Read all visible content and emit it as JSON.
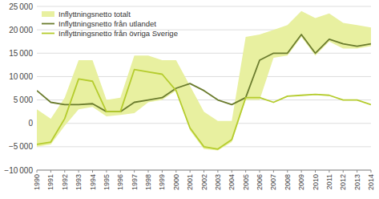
{
  "chart_data": {
    "type": "line",
    "x": [
      1990,
      1991,
      1992,
      1993,
      1994,
      1995,
      1996,
      1997,
      1998,
      1999,
      2000,
      2001,
      2002,
      2003,
      2004,
      2005,
      2006,
      2007,
      2008,
      2009,
      2010,
      2011,
      2012,
      2013,
      2014
    ],
    "series": [
      {
        "name": "Inflyttningsnetto totalt",
        "type": "area",
        "color": "#e8f0a0",
        "values": [
          3000,
          1000,
          5500,
          13500,
          13500,
          5000,
          5500,
          14500,
          14500,
          13500,
          13500,
          8000,
          2500,
          500,
          500,
          18500,
          19000,
          20000,
          21000,
          24000,
          22500,
          23500,
          21500,
          21000,
          20500
        ],
        "lower": [
          -5000,
          -4500,
          -500,
          3000,
          3500,
          1500,
          1800,
          2200,
          4500,
          5000,
          7000,
          -1500,
          -5500,
          -5800,
          -4000,
          5000,
          5000,
          14000,
          14500,
          18500,
          14500,
          17500,
          16000,
          16000,
          16500
        ]
      },
      {
        "name": "Inflyttningsnetto från utlandet",
        "type": "line",
        "color": "#6b7c2e",
        "values": [
          7000,
          4500,
          4000,
          4000,
          4200,
          2500,
          2500,
          4500,
          5000,
          5500,
          7500,
          8500,
          7000,
          5000,
          4000,
          5500,
          13500,
          15000,
          15000,
          19000,
          15000,
          18000,
          17000,
          16500,
          17000
        ]
      },
      {
        "name": "Inflyttningsnetto från övriga Sverige",
        "type": "line",
        "color": "#b5cc2e",
        "values": [
          -4500,
          -4000,
          1000,
          9500,
          9000,
          2500,
          2500,
          11500,
          11000,
          10500,
          7000,
          -1000,
          -5000,
          -5500,
          -3500,
          5500,
          5500,
          4500,
          5800,
          6000,
          6200,
          6000,
          5000,
          5000,
          4000
        ]
      }
    ],
    "xlim": [
      1990,
      2014
    ],
    "xticks": [
      1990,
      1991,
      1992,
      1993,
      1994,
      1995,
      1996,
      1997,
      1998,
      1999,
      2000,
      2001,
      2002,
      2003,
      2004,
      2005,
      2006,
      2007,
      2008,
      2009,
      2010,
      2011,
      2012,
      2013,
      2014
    ],
    "ylim": [
      -10000,
      25000
    ],
    "yticks": [
      {
        "value": -10000,
        "label": "−10 000"
      },
      {
        "value": -5000,
        "label": "−5 000"
      },
      0,
      {
        "value": 5000,
        "label": "5 000"
      },
      {
        "value": 10000,
        "label": "10 000"
      },
      {
        "value": 15000,
        "label": "15 000"
      },
      {
        "value": 20000,
        "label": "20 000"
      },
      {
        "value": 25000,
        "label": "25 000"
      }
    ],
    "grid": true,
    "legend": "upper left"
  }
}
